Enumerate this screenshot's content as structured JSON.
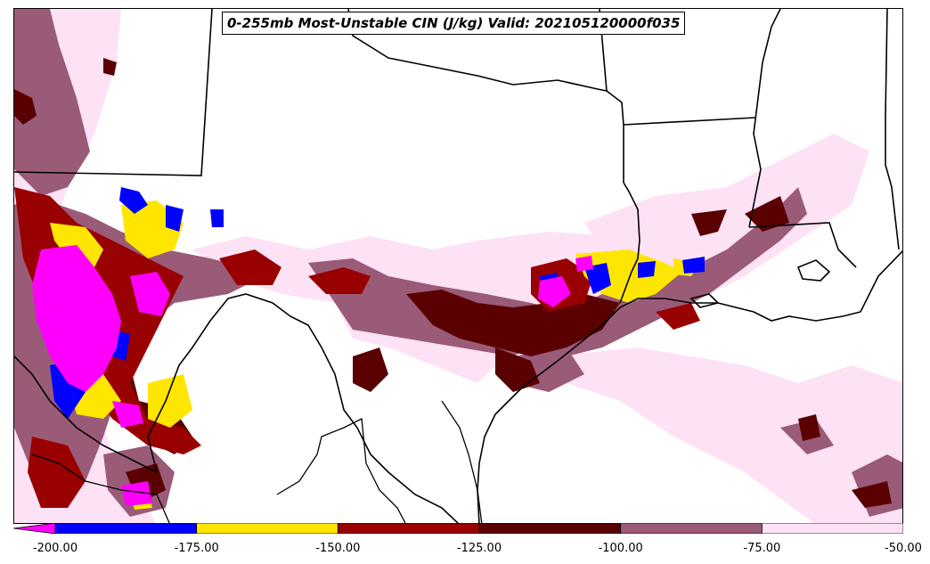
{
  "title": "0-255mb Most-Unstable CIN (J/kg) Valid: 202105120000f035",
  "colorbar": {
    "extend": "min",
    "under_color": "#ff00ff",
    "bins": [
      {
        "from": -200,
        "to": -175,
        "color": "#0000ff"
      },
      {
        "from": -175,
        "to": -150,
        "color": "#ffe600"
      },
      {
        "from": -150,
        "to": -125,
        "color": "#990000"
      },
      {
        "from": -125,
        "to": -100,
        "color": "#5a0000"
      },
      {
        "from": -100,
        "to": -75,
        "color": "#9a5b78"
      },
      {
        "from": -75,
        "to": -50,
        "color": "#fde2f6"
      }
    ],
    "tick_labels": [
      "-200.00",
      "-175.00",
      "-150.00",
      "-125.00",
      "-100.00",
      "-75.00",
      "-50.00"
    ]
  },
  "map": {
    "region": "South-central United States and northern Mexico",
    "features": [
      "state-borders",
      "us-mexico-border",
      "gulf-coastline"
    ]
  }
}
